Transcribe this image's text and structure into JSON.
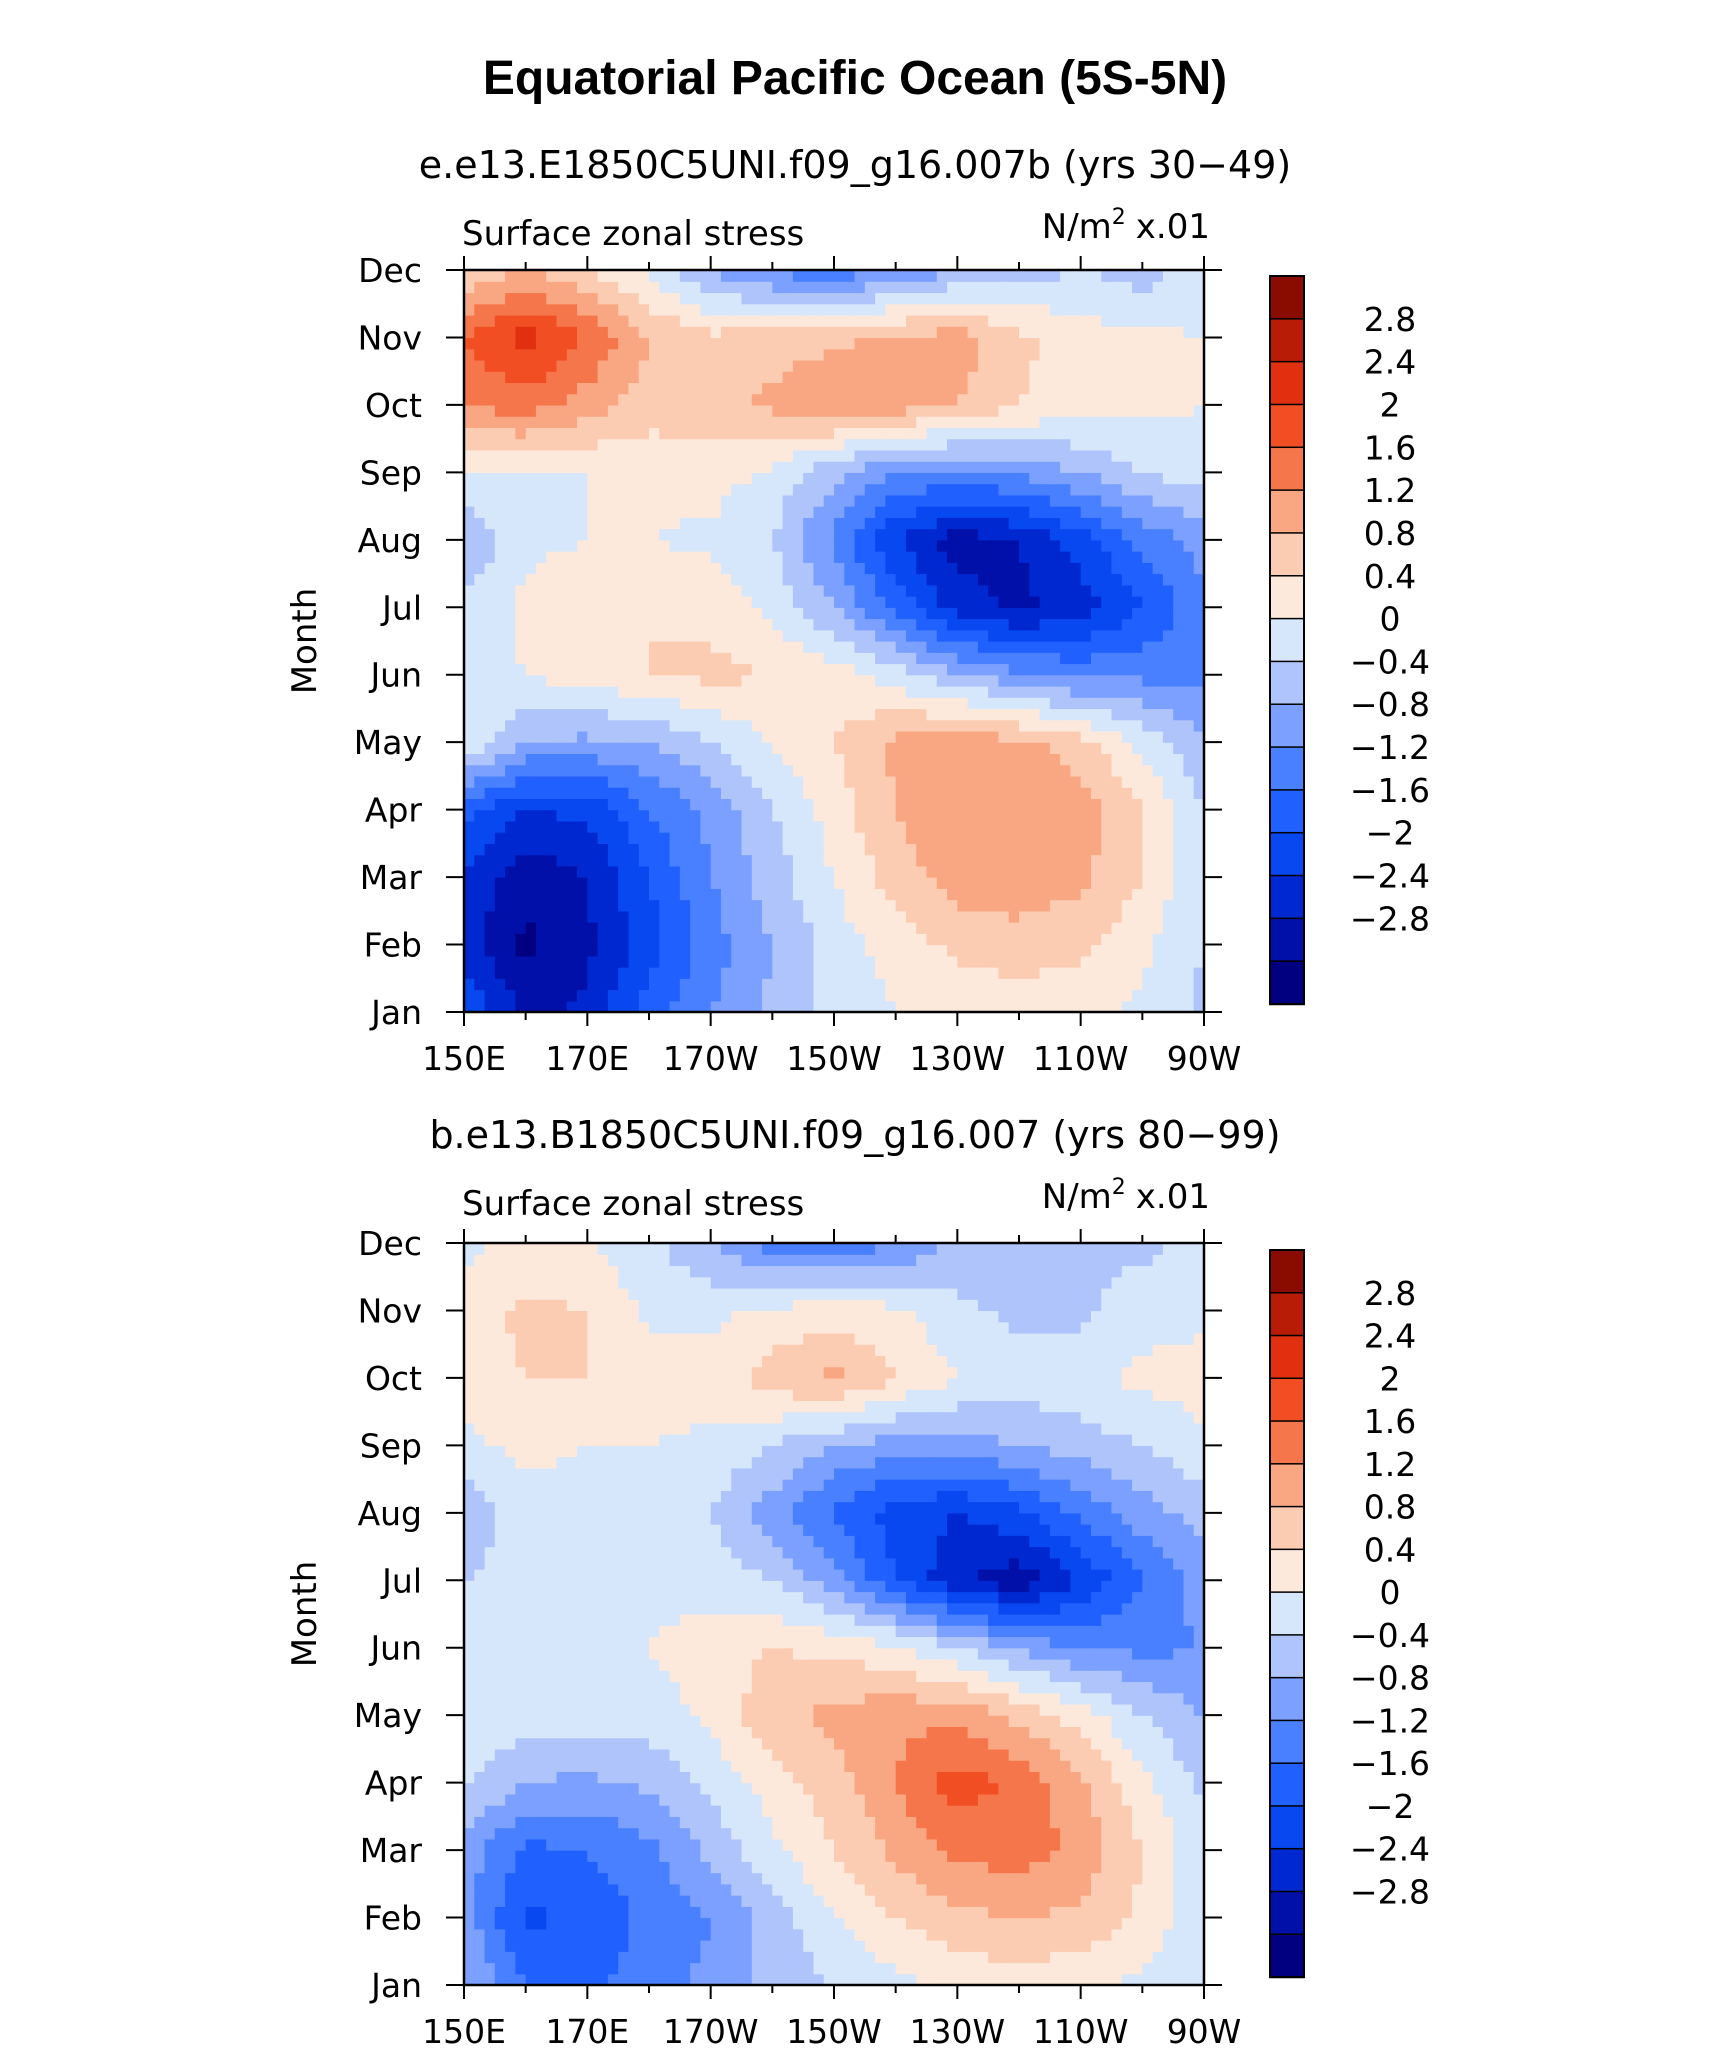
{
  "figure": {
    "title": "Equatorial Pacific Ocean (5S-5N)"
  },
  "panels": [
    {
      "run_title": "e.e13.E1850C5UNI.f09_g16.007b (yrs 30−49)",
      "left_label": "Surface zonal stress",
      "units_base": "N/m",
      "units_exp": "2",
      "units_scale": "x.01"
    },
    {
      "run_title": "b.e13.B1850C5UNI.f09_g16.007 (yrs 80−99)",
      "left_label": "Surface zonal stress",
      "units_base": "N/m",
      "units_exp": "2",
      "units_scale": "x.01"
    }
  ],
  "chart_data": [
    {
      "type": "heatmap",
      "title": "e.e13.E1850C5UNI.f09_g16.007b (yrs 30−49)",
      "variable": "Surface zonal stress",
      "units": "N/m² x.01",
      "xlabel": "",
      "ylabel": "Month",
      "x_tick_labels": [
        "150E",
        "170E",
        "170W",
        "150W",
        "130W",
        "110W",
        "90W"
      ],
      "x_tick_values": [
        150,
        170,
        190,
        210,
        230,
        250,
        270
      ],
      "xlim": [
        150,
        270
      ],
      "y_tick_labels": [
        "Jan",
        "Feb",
        "Mar",
        "Apr",
        "May",
        "Jun",
        "Jul",
        "Aug",
        "Sep",
        "Oct",
        "Nov",
        "Dec"
      ],
      "lon": [
        150,
        160,
        170,
        180,
        190,
        200,
        210,
        220,
        230,
        240,
        250,
        260,
        270
      ],
      "values": [
        [
          -1.6,
          -2.5,
          -2.3,
          -1.4,
          -0.8,
          -0.3,
          0.1,
          0.4,
          0.5,
          0.6,
          0.5,
          0.3,
          -0.1
        ],
        [
          -2.2,
          -2.9,
          -2.5,
          -1.8,
          -1.0,
          -0.4,
          0.2,
          0.6,
          0.9,
          1.0,
          0.9,
          0.5,
          0.0
        ],
        [
          -2.0,
          -2.7,
          -2.4,
          -1.6,
          -0.8,
          -0.2,
          0.4,
          1.0,
          1.4,
          1.5,
          1.3,
          0.8,
          0.0
        ],
        [
          -1.4,
          -2.0,
          -1.9,
          -1.2,
          -0.7,
          0.0,
          0.6,
          1.2,
          1.6,
          1.6,
          1.4,
          0.8,
          0.0
        ],
        [
          0.4,
          -0.4,
          -0.5,
          -0.4,
          0.0,
          0.4,
          0.8,
          1.3,
          1.5,
          1.3,
          1.0,
          0.3,
          -0.4
        ],
        [
          0.3,
          0.4,
          0.6,
          0.8,
          0.9,
          0.8,
          0.6,
          0.2,
          -0.3,
          -0.7,
          -0.9,
          -0.9,
          -0.9
        ],
        [
          0.1,
          0.5,
          0.7,
          0.8,
          0.7,
          0.3,
          -0.4,
          -1.3,
          -2.2,
          -2.5,
          -2.2,
          -1.6,
          -0.9
        ],
        [
          -0.4,
          0.3,
          0.4,
          0.4,
          0.3,
          0.0,
          -0.9,
          -2.0,
          -2.6,
          -2.4,
          -1.8,
          -1.1,
          -0.6
        ],
        [
          0.3,
          0.4,
          0.4,
          0.5,
          0.6,
          0.3,
          -0.3,
          -0.8,
          -0.9,
          -0.7,
          -0.4,
          0.0,
          0.2
        ],
        [
          1.6,
          1.8,
          1.4,
          1.0,
          1.0,
          1.3,
          1.6,
          1.4,
          1.2,
          0.8,
          0.6,
          0.5,
          0.4
        ],
        [
          2.0,
          2.6,
          2.0,
          1.2,
          0.9,
          1.0,
          1.1,
          1.3,
          1.4,
          0.9,
          0.6,
          0.5,
          0.4
        ],
        [
          0.8,
          1.2,
          0.8,
          0.3,
          -0.4,
          -0.9,
          -1.1,
          -0.8,
          -0.4,
          -0.2,
          0.0,
          -0.2,
          0.2
        ]
      ],
      "levels": [
        -2.8,
        -2.4,
        -2.0,
        -1.6,
        -1.2,
        -0.8,
        -0.4,
        0,
        0.4,
        0.8,
        1.2,
        1.6,
        2.0,
        2.4,
        2.8
      ],
      "colorbar_labels": [
        "2.8",
        "2.4",
        "2",
        "1.6",
        "1.2",
        "0.8",
        "0.4",
        "0",
        "−0.4",
        "−0.8",
        "−1.2",
        "−1.6",
        "−2",
        "−2.4",
        "−2.8"
      ],
      "colors": [
        "#000080",
        "#0010a8",
        "#0028d0",
        "#0848f0",
        "#2060ff",
        "#4880ff",
        "#7ca0ff",
        "#aec4fa",
        "#d6e6fb",
        "#fde9dc",
        "#fbcbb2",
        "#f9a782",
        "#f6764c",
        "#f24e24",
        "#e03010",
        "#b81c06",
        "#8a0b00"
      ]
    },
    {
      "type": "heatmap",
      "title": "b.e13.B1850C5UNI.f09_g16.007 (yrs 80−99)",
      "variable": "Surface zonal stress",
      "units": "N/m² x.01",
      "xlabel": "",
      "ylabel": "Month",
      "x_tick_labels": [
        "150E",
        "170E",
        "170W",
        "150W",
        "130W",
        "110W",
        "90W"
      ],
      "x_tick_values": [
        150,
        170,
        190,
        210,
        230,
        250,
        270
      ],
      "xlim": [
        150,
        270
      ],
      "y_tick_labels": [
        "Jan",
        "Feb",
        "Mar",
        "Apr",
        "May",
        "Jun",
        "Jul",
        "Aug",
        "Sep",
        "Oct",
        "Nov",
        "Dec"
      ],
      "lon": [
        150,
        160,
        170,
        180,
        190,
        200,
        210,
        220,
        230,
        240,
        250,
        260,
        270
      ],
      "values": [
        [
          -0.3,
          -1.2,
          -1.3,
          -1.0,
          -0.7,
          -0.3,
          0.0,
          0.3,
          0.5,
          0.6,
          0.5,
          0.3,
          0.0
        ],
        [
          -0.6,
          -1.7,
          -1.5,
          -1.1,
          -0.8,
          -0.2,
          0.4,
          0.8,
          1.1,
          1.2,
          1.1,
          0.7,
          0.1
        ],
        [
          -0.6,
          -1.3,
          -1.2,
          -0.9,
          -0.3,
          0.3,
          0.8,
          1.3,
          1.7,
          1.8,
          1.5,
          0.8,
          0.1
        ],
        [
          0.1,
          -0.4,
          -0.5,
          -0.3,
          0.1,
          0.6,
          1.0,
          1.6,
          2.2,
          1.9,
          1.3,
          0.5,
          -0.1
        ],
        [
          0.2,
          0.2,
          0.2,
          0.2,
          0.5,
          1.1,
          1.3,
          1.5,
          1.5,
          1.1,
          0.6,
          0.0,
          -0.4
        ],
        [
          0.1,
          0.3,
          0.3,
          0.4,
          0.6,
          0.8,
          0.7,
          0.5,
          0.0,
          -0.5,
          -0.8,
          -0.9,
          -0.8
        ],
        [
          0.0,
          0.2,
          0.3,
          0.3,
          0.2,
          0.0,
          -0.6,
          -1.6,
          -2.3,
          -2.7,
          -2.0,
          -1.2,
          -0.6
        ],
        [
          -0.3,
          0.2,
          0.3,
          0.3,
          0.0,
          -0.6,
          -1.3,
          -1.8,
          -2.0,
          -1.7,
          -1.1,
          -0.6,
          -0.2
        ],
        [
          0.3,
          0.5,
          0.4,
          0.4,
          0.3,
          0.0,
          -0.4,
          -0.6,
          -0.6,
          -0.4,
          -0.2,
          0.0,
          0.3
        ],
        [
          0.6,
          0.8,
          0.8,
          0.6,
          0.6,
          1.0,
          1.3,
          0.8,
          0.4,
          0.2,
          0.3,
          0.5,
          0.6
        ],
        [
          0.6,
          0.9,
          0.8,
          0.3,
          0.3,
          0.5,
          0.6,
          0.5,
          0.1,
          -0.1,
          -0.1,
          0.2,
          0.3
        ],
        [
          0.3,
          0.5,
          0.4,
          0.1,
          -0.4,
          -1.0,
          -1.1,
          -0.8,
          -0.3,
          -0.1,
          0.0,
          -0.1,
          0.2
        ]
      ],
      "levels": [
        -2.8,
        -2.4,
        -2.0,
        -1.6,
        -1.2,
        -0.8,
        -0.4,
        0,
        0.4,
        0.8,
        1.2,
        1.6,
        2.0,
        2.4,
        2.8
      ],
      "colorbar_labels": [
        "2.8",
        "2.4",
        "2",
        "1.6",
        "1.2",
        "0.8",
        "0.4",
        "0",
        "−0.4",
        "−0.8",
        "−1.2",
        "−1.6",
        "−2",
        "−2.4",
        "−2.8"
      ],
      "colors": [
        "#000080",
        "#0010a8",
        "#0028d0",
        "#0848f0",
        "#2060ff",
        "#4880ff",
        "#7ca0ff",
        "#aec4fa",
        "#d6e6fb",
        "#fde9dc",
        "#fbcbb2",
        "#f9a782",
        "#f6764c",
        "#f24e24",
        "#e03010",
        "#b81c06",
        "#8a0b00"
      ]
    }
  ]
}
